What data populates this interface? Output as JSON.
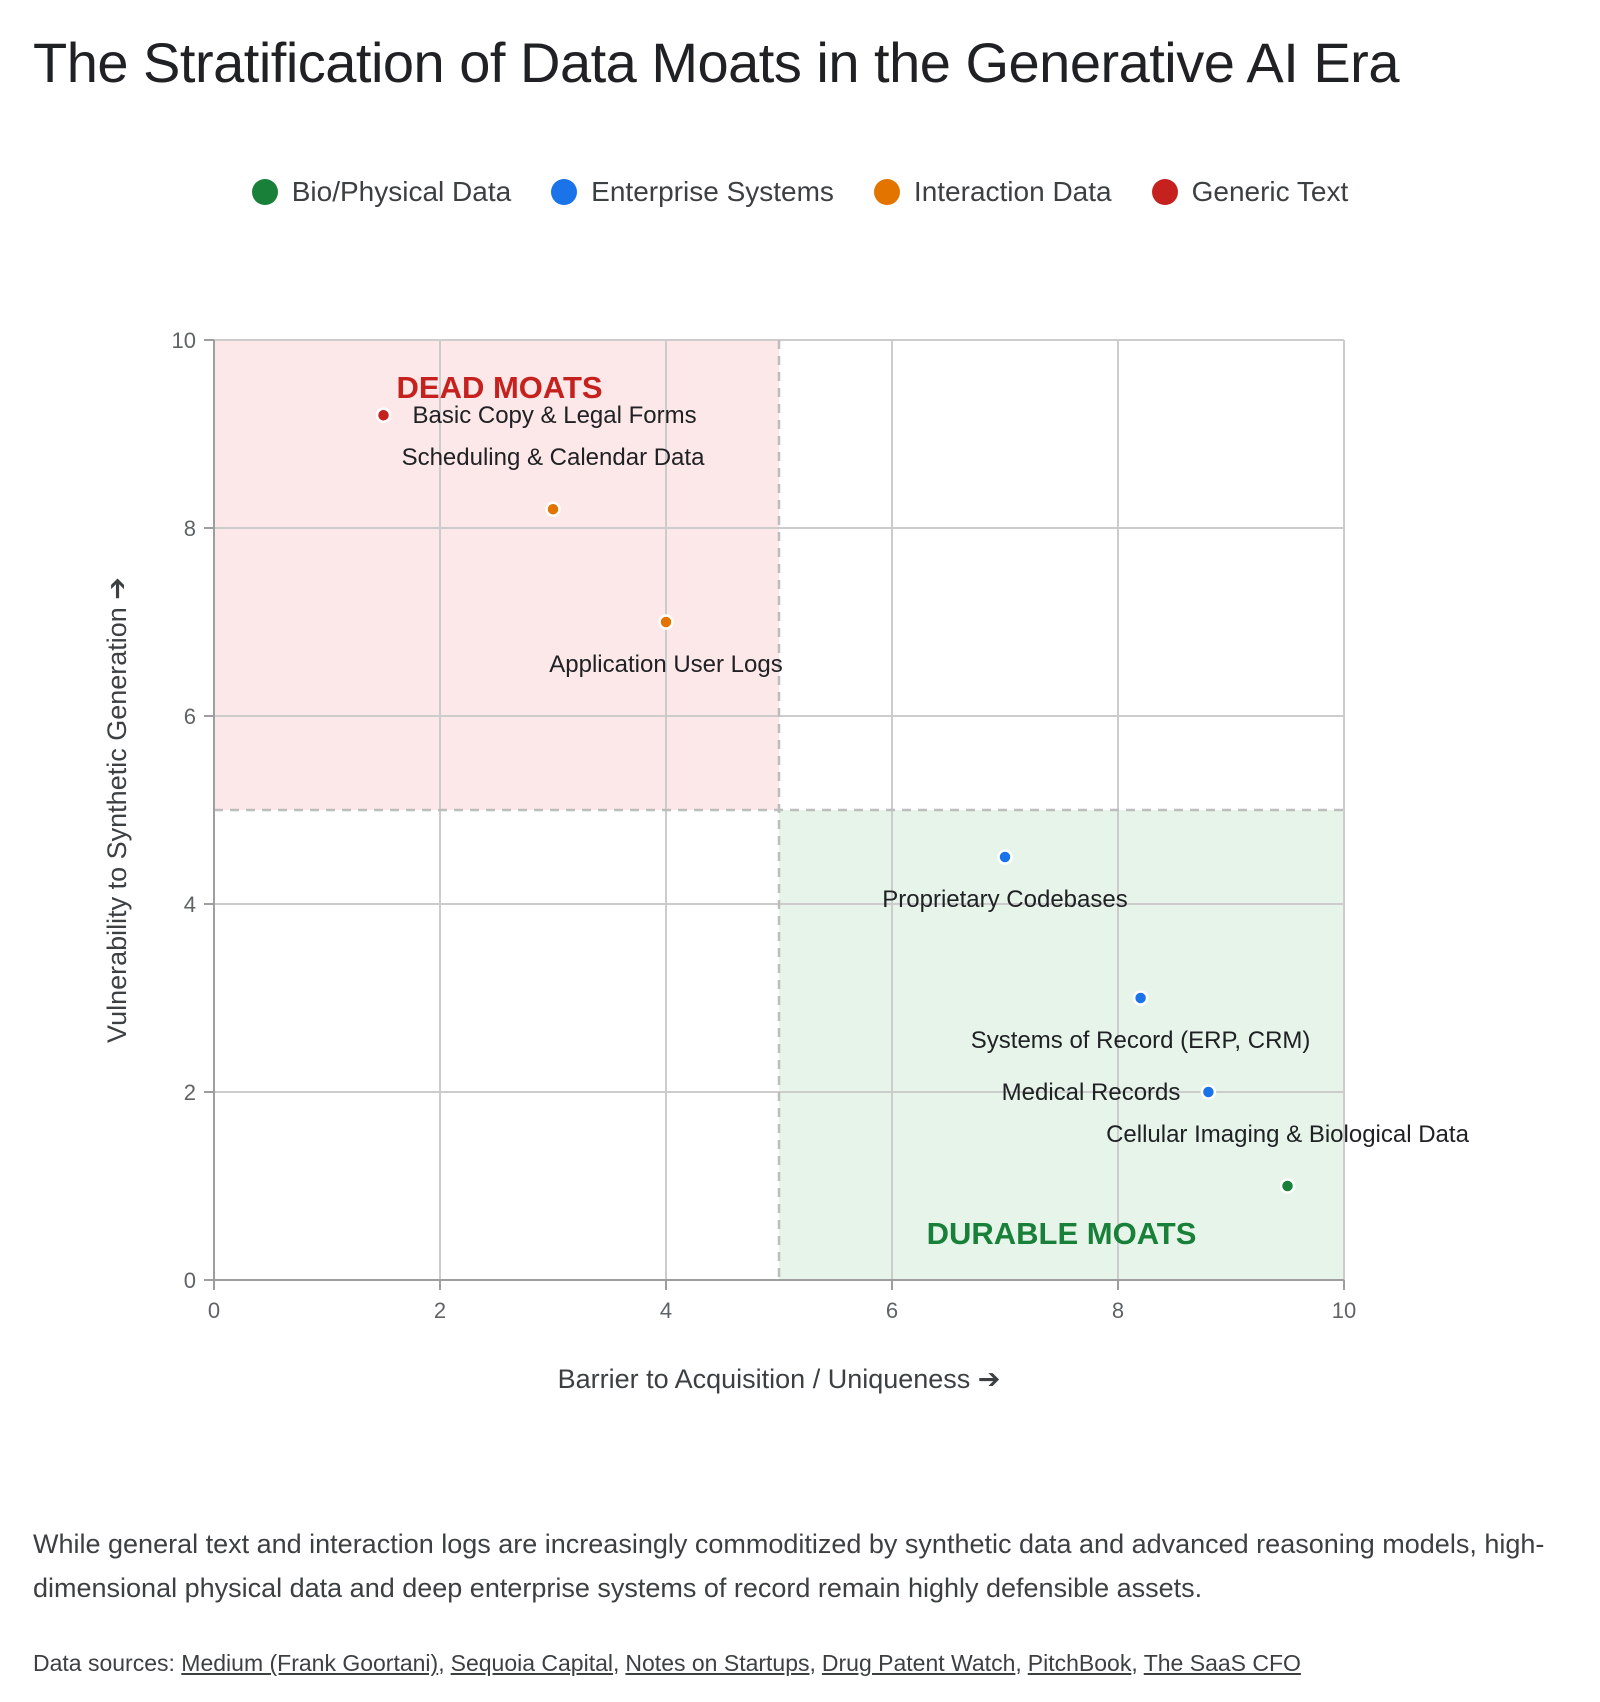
{
  "title": "The Stratification of Data Moats in the Generative AI Era",
  "legend": [
    {
      "label": "Bio/Physical Data",
      "color": "#188038"
    },
    {
      "label": "Enterprise Systems",
      "color": "#1a73e8"
    },
    {
      "label": "Interaction Data",
      "color": "#e37400"
    },
    {
      "label": "Generic Text",
      "color": "#c5221f"
    }
  ],
  "chart_data": {
    "type": "scatter",
    "xlabel": "Barrier to Acquisition / Uniqueness ➔",
    "ylabel": "Vulnerability to Synthetic Generation ➔",
    "xlim": [
      0,
      10
    ],
    "ylim": [
      0,
      10
    ],
    "x_ticks": [
      "0",
      "2",
      "4",
      "6",
      "8",
      "10"
    ],
    "y_ticks": [
      "0",
      "2",
      "4",
      "6",
      "8",
      "10"
    ],
    "grid": true,
    "legend_position": "top",
    "series": [
      {
        "name": "Bio/Physical Data",
        "color": "#188038",
        "points": [
          {
            "label": "Cellular Imaging & Biological Data",
            "x": 9.5,
            "y": 1
          }
        ]
      },
      {
        "name": "Enterprise Systems",
        "color": "#1a73e8",
        "points": [
          {
            "label": "Proprietary Codebases",
            "x": 7,
            "y": 4.5
          },
          {
            "label": "Systems of Record (ERP, CRM)",
            "x": 8.2,
            "y": 3
          },
          {
            "label": "Medical Records",
            "x": 8.8,
            "y": 2
          }
        ]
      },
      {
        "name": "Interaction Data",
        "color": "#e37400",
        "points": [
          {
            "label": "Scheduling & Calendar Data",
            "x": 3,
            "y": 8.2
          },
          {
            "label": "Application User Logs",
            "x": 4,
            "y": 7
          }
        ]
      },
      {
        "name": "Generic Text",
        "color": "#c5221f",
        "points": [
          {
            "label": "Basic Copy & Legal Forms",
            "x": 1.5,
            "y": 9.2
          }
        ]
      }
    ],
    "regions": [
      {
        "label": "DEAD MOATS",
        "x": [
          0,
          5
        ],
        "y": [
          5,
          10
        ],
        "fill": "#fce8e8",
        "label_color": "#c5221f"
      },
      {
        "label": "DURABLE MOATS",
        "x": [
          5,
          10
        ],
        "y": [
          0,
          5
        ],
        "fill": "#e6f4ea",
        "label_color": "#188038"
      }
    ]
  },
  "caption": "While general text and interaction logs are increasingly commoditized by synthetic data and advanced reasoning models, high-dimensional physical data and deep enterprise systems of record remain highly defensible assets.",
  "sources": {
    "prefix": "Data sources: ",
    "links": [
      "Medium (Frank Goortani)",
      "Sequoia Capital",
      "Notes on Startups",
      "Drug Patent Watch",
      "PitchBook",
      "The SaaS CFO"
    ]
  }
}
